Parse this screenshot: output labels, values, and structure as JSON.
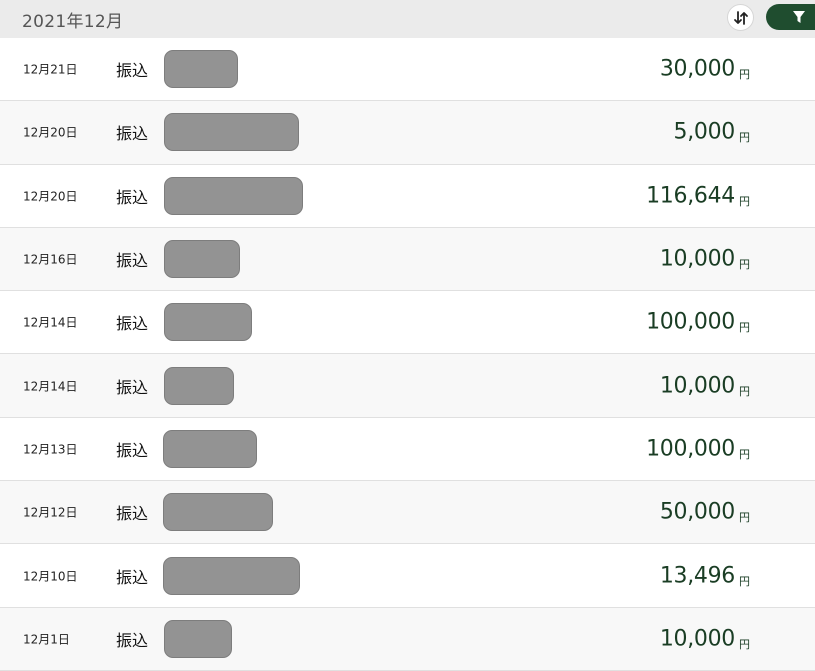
{
  "header": {
    "title": "2021年12月"
  },
  "icons": {
    "sort": "sort-arrows-icon",
    "filter": "filter-funnel-icon"
  },
  "colors": {
    "accent": "#1f4d2f",
    "amount": "#1a3d24",
    "header_bg": "#ebebeb",
    "redacted": "#939393"
  },
  "transactions": [
    {
      "date": "12月21日",
      "type": "振込",
      "amount": "30,000",
      "unit": "円"
    },
    {
      "date": "12月20日",
      "type": "振込",
      "amount": "5,000",
      "unit": "円"
    },
    {
      "date": "12月20日",
      "type": "振込",
      "amount": "116,644",
      "unit": "円"
    },
    {
      "date": "12月16日",
      "type": "振込",
      "amount": "10,000",
      "unit": "円"
    },
    {
      "date": "12月14日",
      "type": "振込",
      "amount": "100,000",
      "unit": "円"
    },
    {
      "date": "12月14日",
      "type": "振込",
      "amount": "10,000",
      "unit": "円"
    },
    {
      "date": "12月13日",
      "type": "振込",
      "amount": "100,000",
      "unit": "円"
    },
    {
      "date": "12月12日",
      "type": "振込",
      "amount": "50,000",
      "unit": "円"
    },
    {
      "date": "12月10日",
      "type": "振込",
      "amount": "13,496",
      "unit": "円"
    },
    {
      "date": "12月1日",
      "type": "振込",
      "amount": "10,000",
      "unit": "円"
    }
  ]
}
